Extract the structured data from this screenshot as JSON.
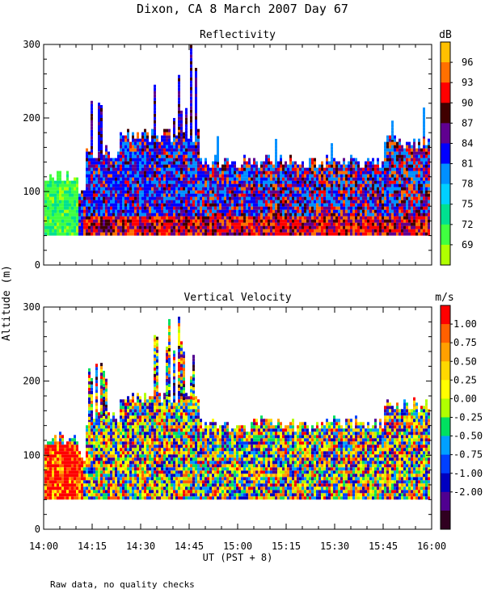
{
  "chart_data": {
    "type": "heatmap",
    "title": "Dixon, CA  8 March 2007  Day  67",
    "xlabel": "UT  (PST + 8)",
    "ylabel": "Altitude (m)",
    "footnote": "Raw data, no quality checks",
    "x_ticks": [
      "14:00",
      "14:15",
      "14:30",
      "14:45",
      "15:00",
      "15:15",
      "15:30",
      "15:45",
      "16:00"
    ],
    "y_ticks": [
      "0",
      "100",
      "200",
      "300"
    ],
    "xlim_hours": [
      14.0,
      16.0
    ],
    "ylim_m": [
      0,
      300
    ],
    "panels": [
      {
        "id": "reflectivity",
        "title": "Reflectivity",
        "unit": "dB",
        "colorbar_labels": [
          "96",
          "93",
          "90",
          "87",
          "84",
          "81",
          "78",
          "75",
          "72",
          "69"
        ],
        "colorbar_colors": [
          "#ffc000",
          "#ff7000",
          "#ff0000",
          "#400000",
          "#600090",
          "#0000ff",
          "#0090ff",
          "#00d0ff",
          "#00e090",
          "#40ff40",
          "#b0ff00"
        ]
      },
      {
        "id": "vertical-velocity",
        "title": "Vertical Velocity",
        "unit": "m/s",
        "colorbar_labels": [
          "1.00",
          "0.75",
          "0.50",
          "0.25",
          "0.00",
          "-0.25",
          "-0.50",
          "-0.75",
          "-1.00",
          "-2.00"
        ],
        "colorbar_colors": [
          "#ff0000",
          "#ff6000",
          "#ffa000",
          "#ffd800",
          "#ffff00",
          "#b0ff00",
          "#00e060",
          "#00a0ff",
          "#0040ff",
          "#0000c0",
          "#500090",
          "#300020"
        ]
      }
    ]
  }
}
